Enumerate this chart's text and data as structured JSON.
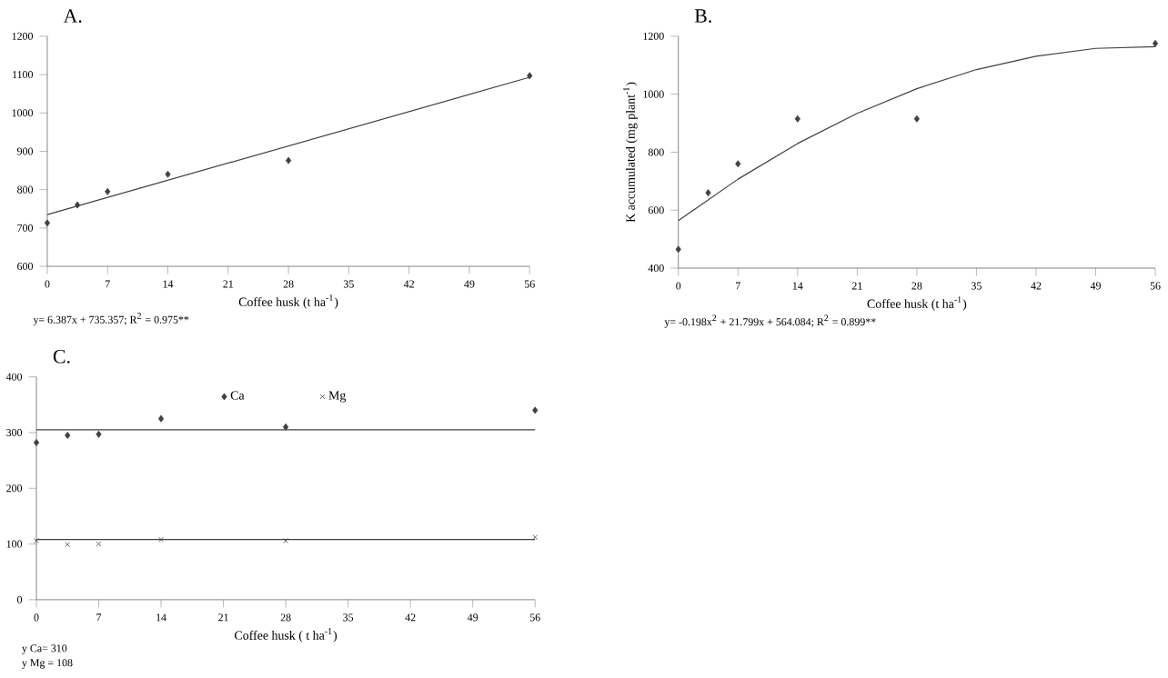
{
  "chart_data": [
    {
      "type": "scatter",
      "title": "A.",
      "xlabel": "Coffee husk (t ha$^{-1}$)",
      "x": [
        0,
        3.5,
        7,
        14,
        28,
        56
      ],
      "marker": "diamond",
      "series": [
        {
          "color": "#404040",
          "values": [
            713,
            760,
            795,
            840,
            876,
            1097
          ]
        },
        {
          "type": "line",
          "marker": "none",
          "color": "#404040",
          "x": [
            0,
            56
          ],
          "values": [
            735,
            1093
          ]
        }
      ],
      "xlim": [
        0,
        56
      ],
      "xticks": [
        0,
        7,
        14,
        21,
        28,
        35,
        42,
        49,
        56
      ],
      "ylim": [
        600,
        1200
      ],
      "yticks": [
        600,
        700,
        800,
        900,
        1000,
        1100,
        1200
      ],
      "annotations": [
        "y= 6.387x + 735.357; R$^{2}$ = 0.975**"
      ]
    },
    {
      "type": "scatter",
      "title": "B.",
      "xlabel": "Coffee husk (t ha$^{-1}$)",
      "ylabel": "K accumulated (mg plant$^{-1}$)",
      "x": [
        0,
        3.5,
        7,
        14,
        28,
        56
      ],
      "marker": "diamond",
      "series": [
        {
          "color": "#404040",
          "values": [
            465,
            660,
            760,
            915,
            915,
            1175
          ]
        },
        {
          "type": "line",
          "marker": "none",
          "color": "#404040",
          "x": [
            0,
            7,
            14,
            21,
            28,
            35,
            42,
            49,
            56
          ],
          "values": [
            564,
            707,
            830,
            934,
            1019,
            1085,
            1131,
            1158,
            1164
          ]
        }
      ],
      "xlim": [
        0,
        56
      ],
      "xticks": [
        0,
        7,
        14,
        21,
        28,
        35,
        42,
        49,
        56
      ],
      "ylim": [
        400,
        1200
      ],
      "yticks": [
        400,
        600,
        800,
        1000,
        1200
      ],
      "annotations": [
        "y= -0.198x$^{2}$ + 21.799x + 564.084; R$^{2}$ = 0.899**"
      ]
    },
    {
      "type": "scatter",
      "title": "C.",
      "xlabel": "Coffee husk ( t ha$^{-1}$)",
      "x": [
        0,
        3.5,
        7,
        14,
        28,
        56
      ],
      "marker": "diamond",
      "legend": "top",
      "series": [
        {
          "name": "Ca",
          "color": "#404040",
          "values": [
            282,
            295,
            297,
            325,
            310,
            340
          ]
        },
        {
          "name": "Mg",
          "color": "#404040",
          "marker": "cross",
          "values": [
            106,
            99,
            100,
            108,
            106,
            112
          ]
        },
        {
          "type": "line",
          "marker": "none",
          "color": "#404040",
          "x": [
            0,
            56
          ],
          "values": [
            305,
            305
          ]
        },
        {
          "type": "line",
          "marker": "none",
          "color": "#404040",
          "x": [
            0,
            56
          ],
          "values": [
            108,
            108
          ]
        }
      ],
      "xlim": [
        0,
        56
      ],
      "xticks": [
        0,
        7,
        14,
        21,
        28,
        35,
        42,
        49,
        56
      ],
      "ylim": [
        0,
        400
      ],
      "yticks": [
        0,
        100,
        200,
        300,
        400
      ],
      "annotations": [
        "y Ca= 310",
        "y Mg = 108"
      ]
    }
  ]
}
